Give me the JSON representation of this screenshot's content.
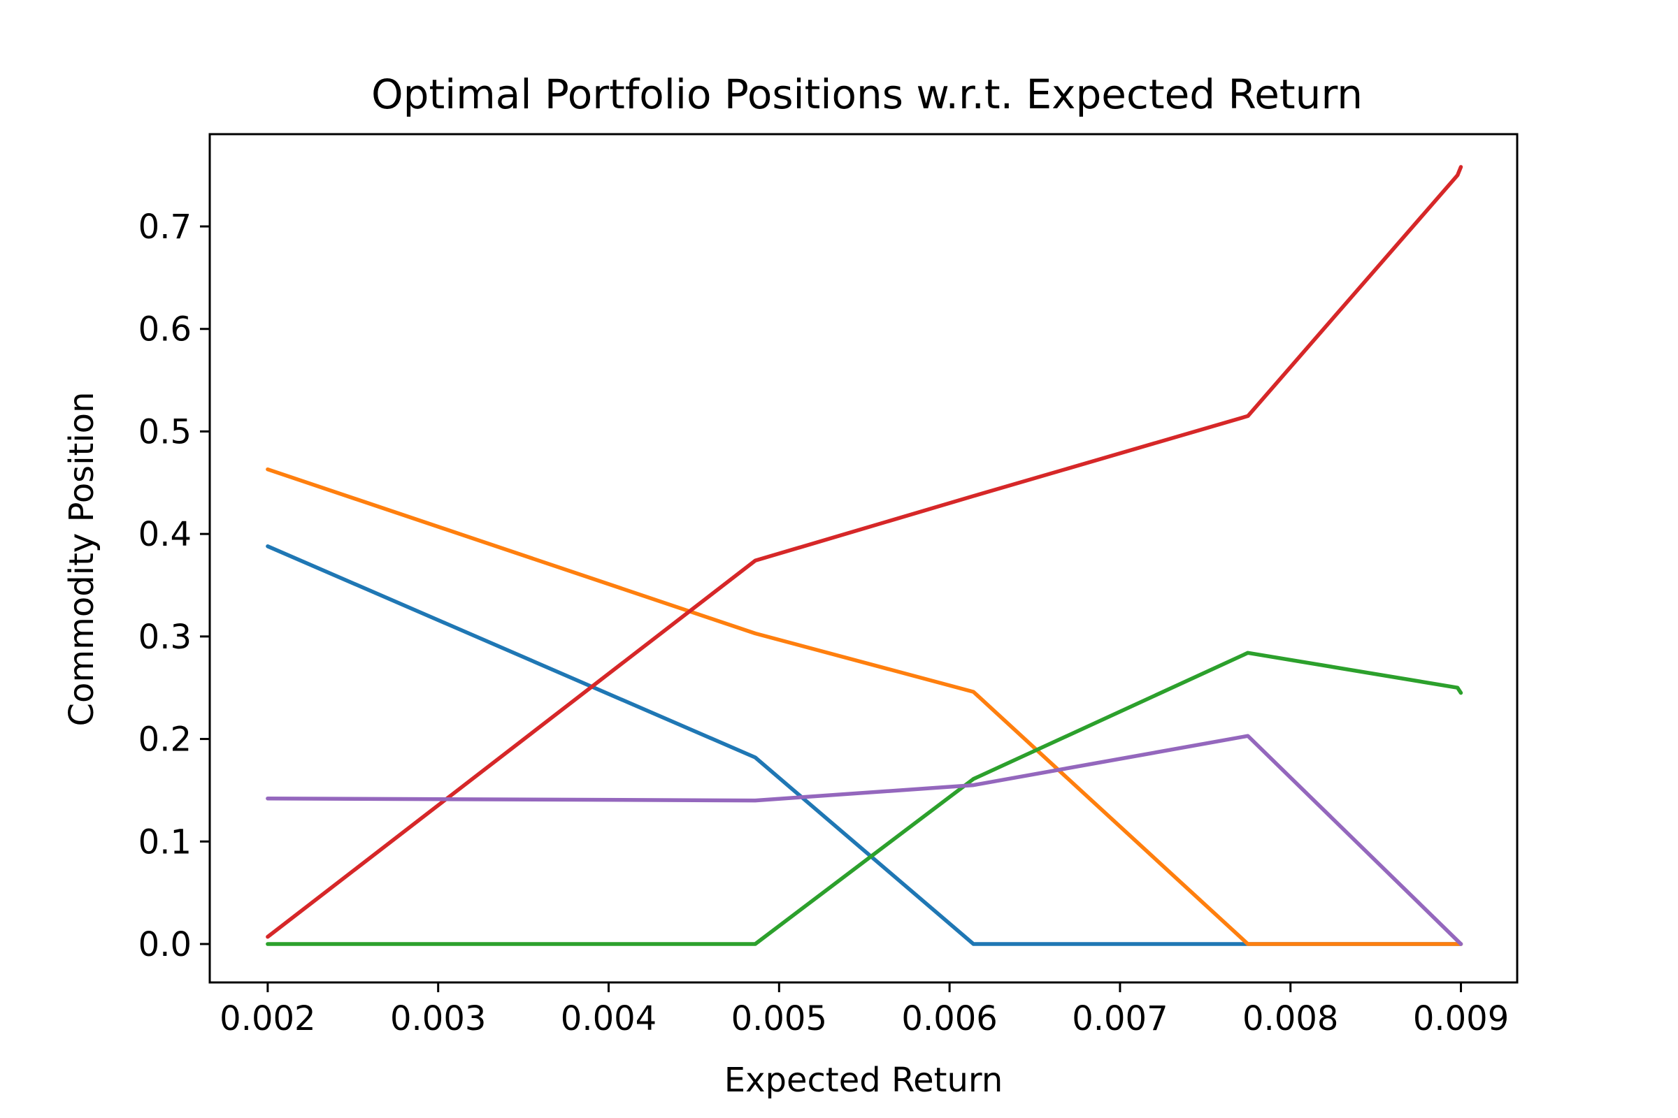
{
  "chart_data": {
    "type": "line",
    "title": "Optimal Portfolio Positions w.r.t. Expected Return",
    "xlabel": "Expected Return",
    "ylabel": "Commodity Position",
    "xlim": [
      0.00166,
      0.00933
    ],
    "ylim": [
      -0.0375,
      0.79
    ],
    "xticks": [
      0.002,
      0.003,
      0.004,
      0.005,
      0.006,
      0.007,
      0.008,
      0.009
    ],
    "xtick_labels": [
      "0.002",
      "0.003",
      "0.004",
      "0.005",
      "0.006",
      "0.007",
      "0.008",
      "0.009"
    ],
    "yticks": [
      0.0,
      0.1,
      0.2,
      0.3,
      0.4,
      0.5,
      0.6,
      0.7
    ],
    "ytick_labels": [
      "0.0",
      "0.1",
      "0.2",
      "0.3",
      "0.4",
      "0.5",
      "0.6",
      "0.7"
    ],
    "grid": false,
    "series": [
      {
        "color": "#1f77b4",
        "x": [
          0.002,
          0.00486,
          0.00614,
          0.00775,
          0.009
        ],
        "y": [
          0.388,
          0.182,
          0.0,
          0.0,
          0.0
        ]
      },
      {
        "color": "#ff7f0e",
        "x": [
          0.002,
          0.00486,
          0.00614,
          0.00775,
          0.009
        ],
        "y": [
          0.463,
          0.303,
          0.246,
          0.0,
          0.0
        ]
      },
      {
        "color": "#2ca02c",
        "x": [
          0.002,
          0.00486,
          0.00614,
          0.00775,
          0.00898,
          0.009
        ],
        "y": [
          0.0,
          0.0,
          0.161,
          0.284,
          0.25,
          0.245
        ]
      },
      {
        "color": "#d62728",
        "x": [
          0.002,
          0.00486,
          0.00614,
          0.00775,
          0.00898,
          0.009
        ],
        "y": [
          0.007,
          0.374,
          0.437,
          0.515,
          0.75,
          0.758
        ]
      },
      {
        "color": "#9467bd",
        "x": [
          0.002,
          0.00486,
          0.00614,
          0.00775,
          0.009
        ],
        "y": [
          0.142,
          0.14,
          0.155,
          0.203,
          0.0
        ]
      }
    ]
  }
}
